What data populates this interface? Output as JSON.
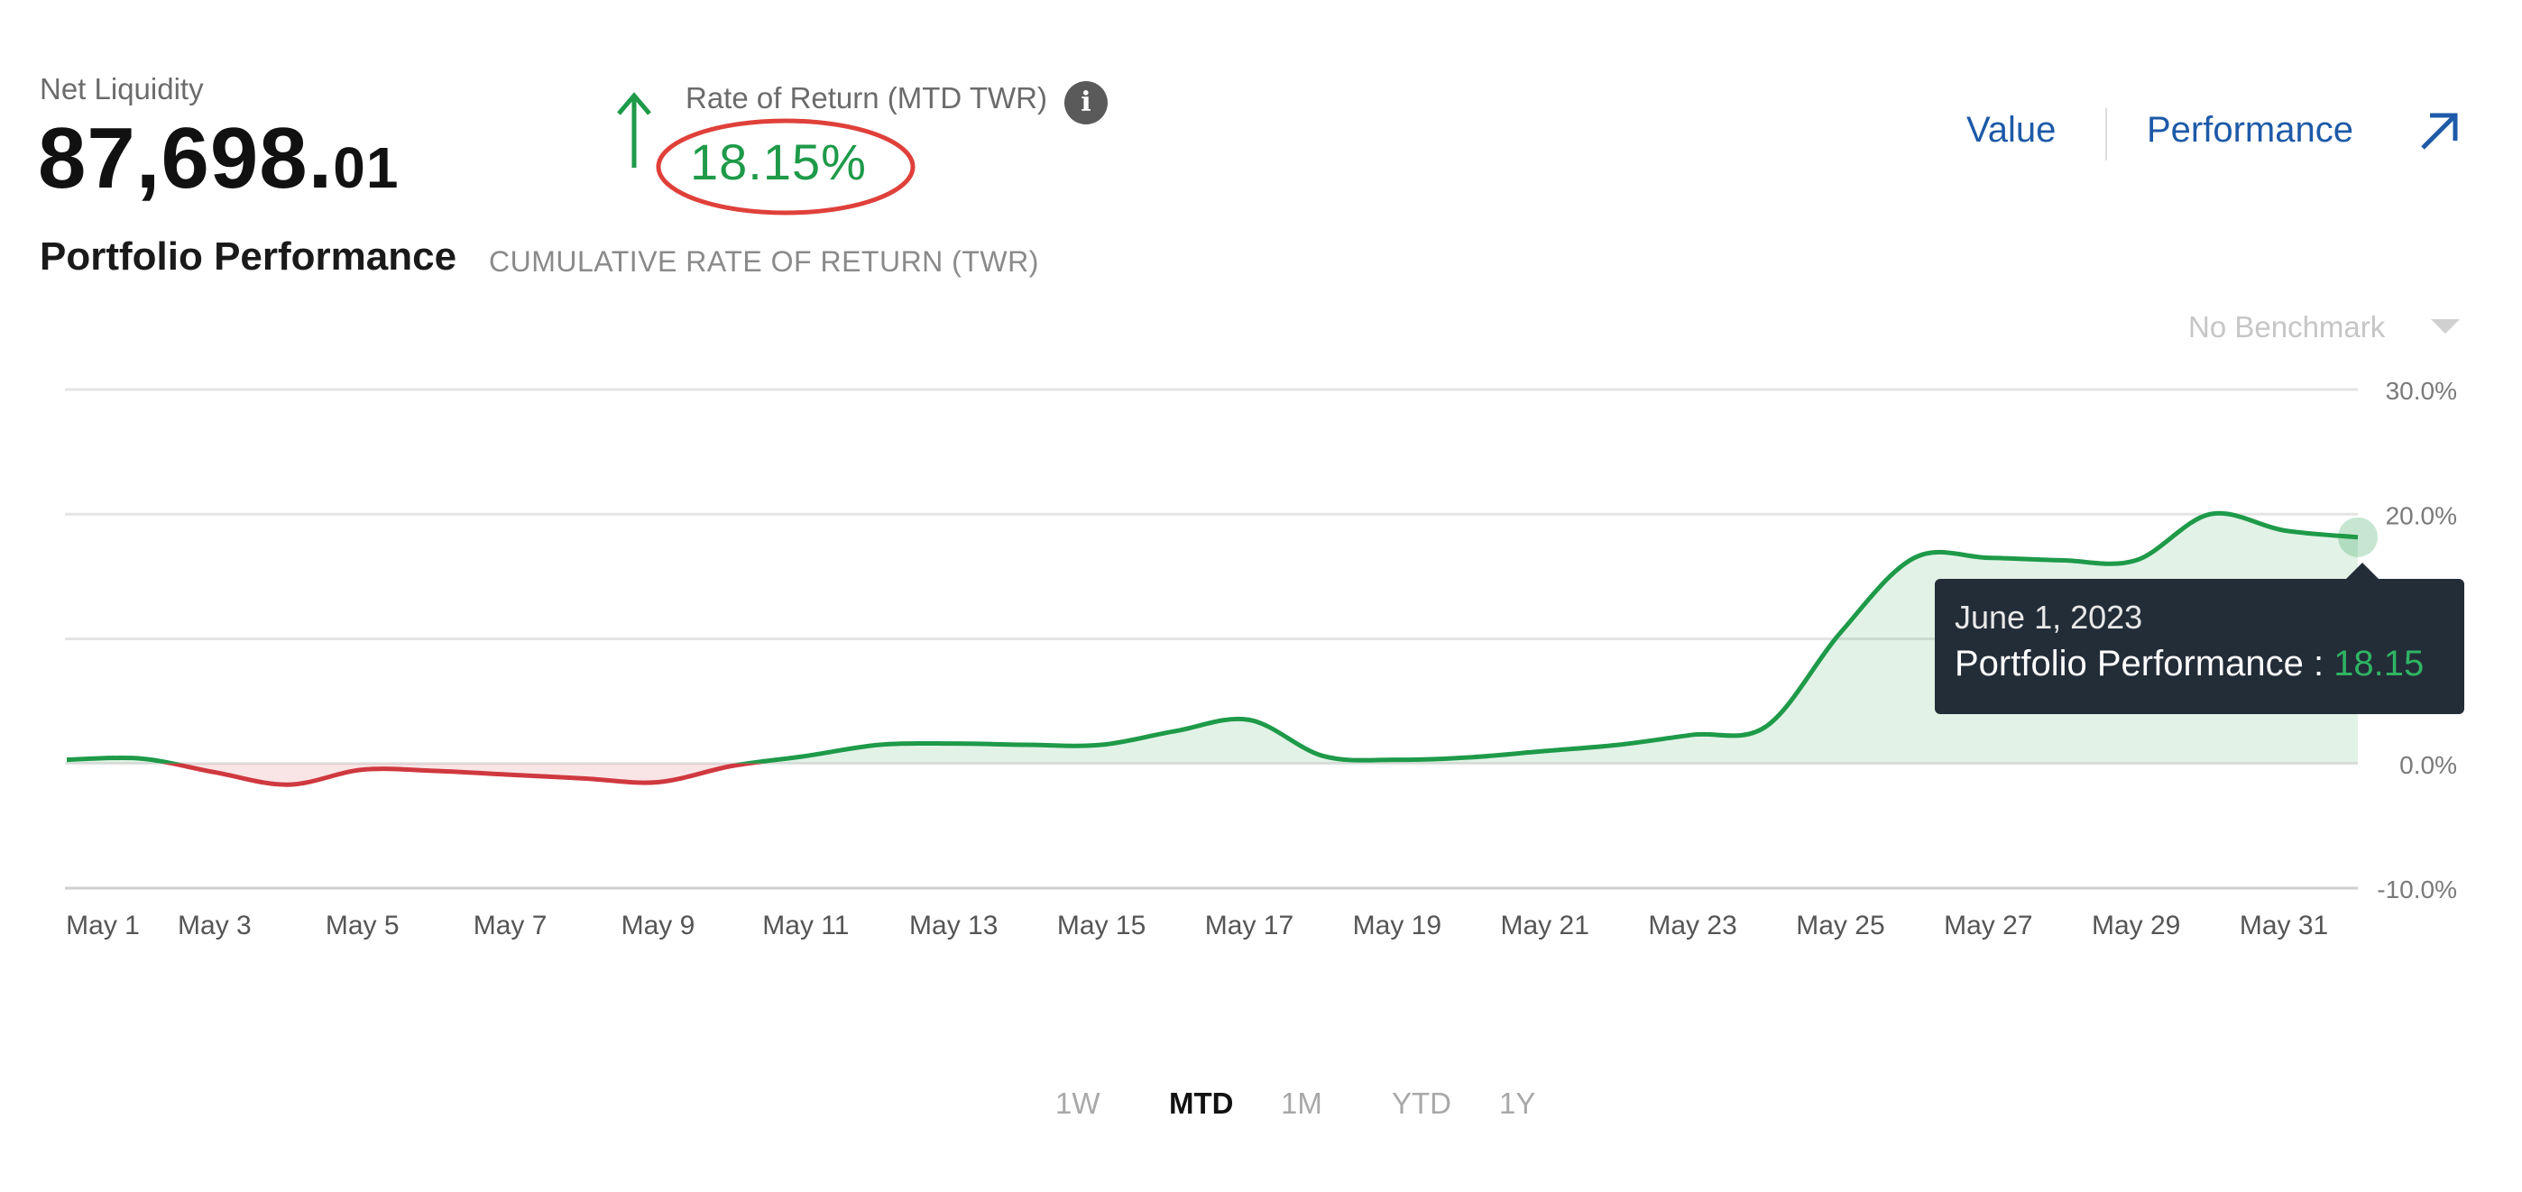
{
  "header": {
    "net_liquidity_label": "Net Liquidity",
    "net_liquidity_main": "87,698.",
    "net_liquidity_cents": "01",
    "ror_label": "Rate of Return (MTD TWR)",
    "ror_value": "18.15%",
    "info_icon": "info-icon",
    "arrow_icon": "arrow-up-icon"
  },
  "nav": {
    "value_label": "Value",
    "performance_label": "Performance",
    "external_icon": "external-link-icon"
  },
  "section": {
    "title": "Portfolio Performance",
    "subtitle": "CUMULATIVE RATE OF RETURN (TWR)",
    "benchmark": "No Benchmark"
  },
  "tooltip": {
    "date": "June 1, 2023",
    "series_label": "Portfolio Performance : ",
    "value": "18.15"
  },
  "periods": [
    "1W",
    "MTD",
    "1M",
    "YTD",
    "1Y"
  ],
  "active_period": "MTD",
  "colors": {
    "positive": "#1e9a49",
    "negative": "#d0383f",
    "accent": "#1d5aa8",
    "tooltip_bg": "#232d38",
    "highlight_circle": "#e0403a"
  },
  "chart_data": {
    "type": "area",
    "x_tick_labels": [
      "May 1",
      "May 3",
      "May 5",
      "May 7",
      "May 9",
      "May 11",
      "May 13",
      "May 15",
      "May 17",
      "May 19",
      "May 21",
      "May 23",
      "May 25",
      "May 27",
      "May 29",
      "May 31"
    ],
    "y_tick_labels": [
      "30.0%",
      "20.0%",
      "0.0%",
      "-10.0%"
    ],
    "ylim": [
      -10,
      30
    ],
    "grid": true,
    "series": [
      {
        "name": "Portfolio Performance",
        "x": [
          "May 1",
          "May 2",
          "May 3",
          "May 4",
          "May 5",
          "May 6",
          "May 7",
          "May 8",
          "May 9",
          "May 10",
          "May 11",
          "May 12",
          "May 13",
          "May 14",
          "May 15",
          "May 16",
          "May 17",
          "May 18",
          "May 19",
          "May 20",
          "May 21",
          "May 22",
          "May 23",
          "May 24",
          "May 25",
          "May 26",
          "May 27",
          "May 28",
          "May 29",
          "May 30",
          "May 31",
          "June 1"
        ],
        "values": [
          0.3,
          0.4,
          -0.7,
          -1.7,
          -0.5,
          -0.6,
          -0.9,
          -1.2,
          -1.5,
          -0.2,
          0.6,
          1.5,
          1.6,
          1.5,
          1.5,
          2.6,
          3.5,
          0.6,
          0.3,
          0.5,
          1.0,
          1.5,
          2.3,
          3.0,
          10.5,
          16.5,
          16.5,
          16.3,
          16.3,
          20.0,
          18.7,
          18.15
        ]
      }
    ]
  }
}
